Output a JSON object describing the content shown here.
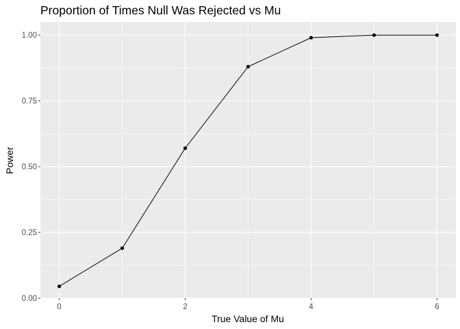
{
  "chart_data": {
    "type": "line",
    "title": "Proportion of Times Null Was Rejected vs Mu",
    "xlabel": "True Value of Mu",
    "ylabel": "Power",
    "x": [
      0,
      1,
      2,
      3,
      4,
      5,
      6
    ],
    "series": [
      {
        "values": [
          0.045,
          0.19,
          0.57,
          0.88,
          0.99,
          1.0,
          1.0
        ]
      }
    ],
    "xlim": [
      -0.3,
      6.3
    ],
    "ylim": [
      0,
      1.05
    ],
    "xticks": [
      0,
      2,
      4,
      6
    ],
    "xtick_labels": [
      "0",
      "2",
      "4",
      "6"
    ],
    "yticks": [
      0,
      0.25,
      0.5,
      0.75,
      1.0
    ],
    "ytick_labels": [
      "0.00",
      "0.25",
      "0.50",
      "0.75",
      "1.00"
    ],
    "grid": true,
    "legend": "none",
    "colors": {
      "panel_background": "#ebebeb",
      "grid": "#ffffff",
      "line": "#000000",
      "point": "#000000",
      "tick_label": "#4d4d4d"
    }
  }
}
